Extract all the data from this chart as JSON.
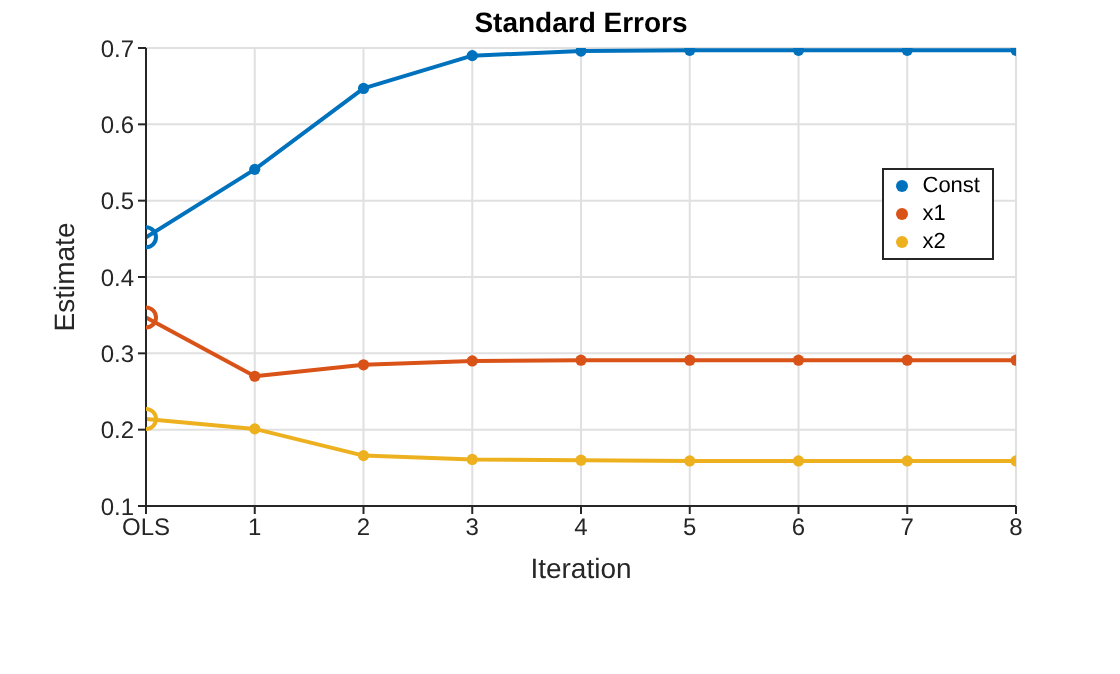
{
  "chart_data": {
    "type": "line",
    "title": "Standard Errors",
    "xlabel": "Iteration",
    "ylabel": "Estimate",
    "categories": [
      "OLS",
      "1",
      "2",
      "3",
      "4",
      "5",
      "6",
      "7",
      "8"
    ],
    "series": [
      {
        "name": "Const",
        "color": "#0072bd",
        "values": [
          0.452,
          0.541,
          0.647,
          0.69,
          0.696,
          0.697,
          0.697,
          0.697,
          0.697
        ]
      },
      {
        "name": "x1",
        "color": "#d95319",
        "values": [
          0.347,
          0.27,
          0.285,
          0.29,
          0.291,
          0.291,
          0.291,
          0.291,
          0.291
        ]
      },
      {
        "name": "x2",
        "color": "#edb120",
        "values": [
          0.214,
          0.201,
          0.166,
          0.161,
          0.16,
          0.159,
          0.159,
          0.159,
          0.159
        ]
      }
    ],
    "ylim": [
      0.1,
      0.7
    ],
    "yticks": [
      0.1,
      0.2,
      0.3,
      0.4,
      0.5,
      0.6,
      0.7
    ],
    "grid": true,
    "legend": "top right",
    "marker": "circle",
    "line_style": "solid"
  }
}
